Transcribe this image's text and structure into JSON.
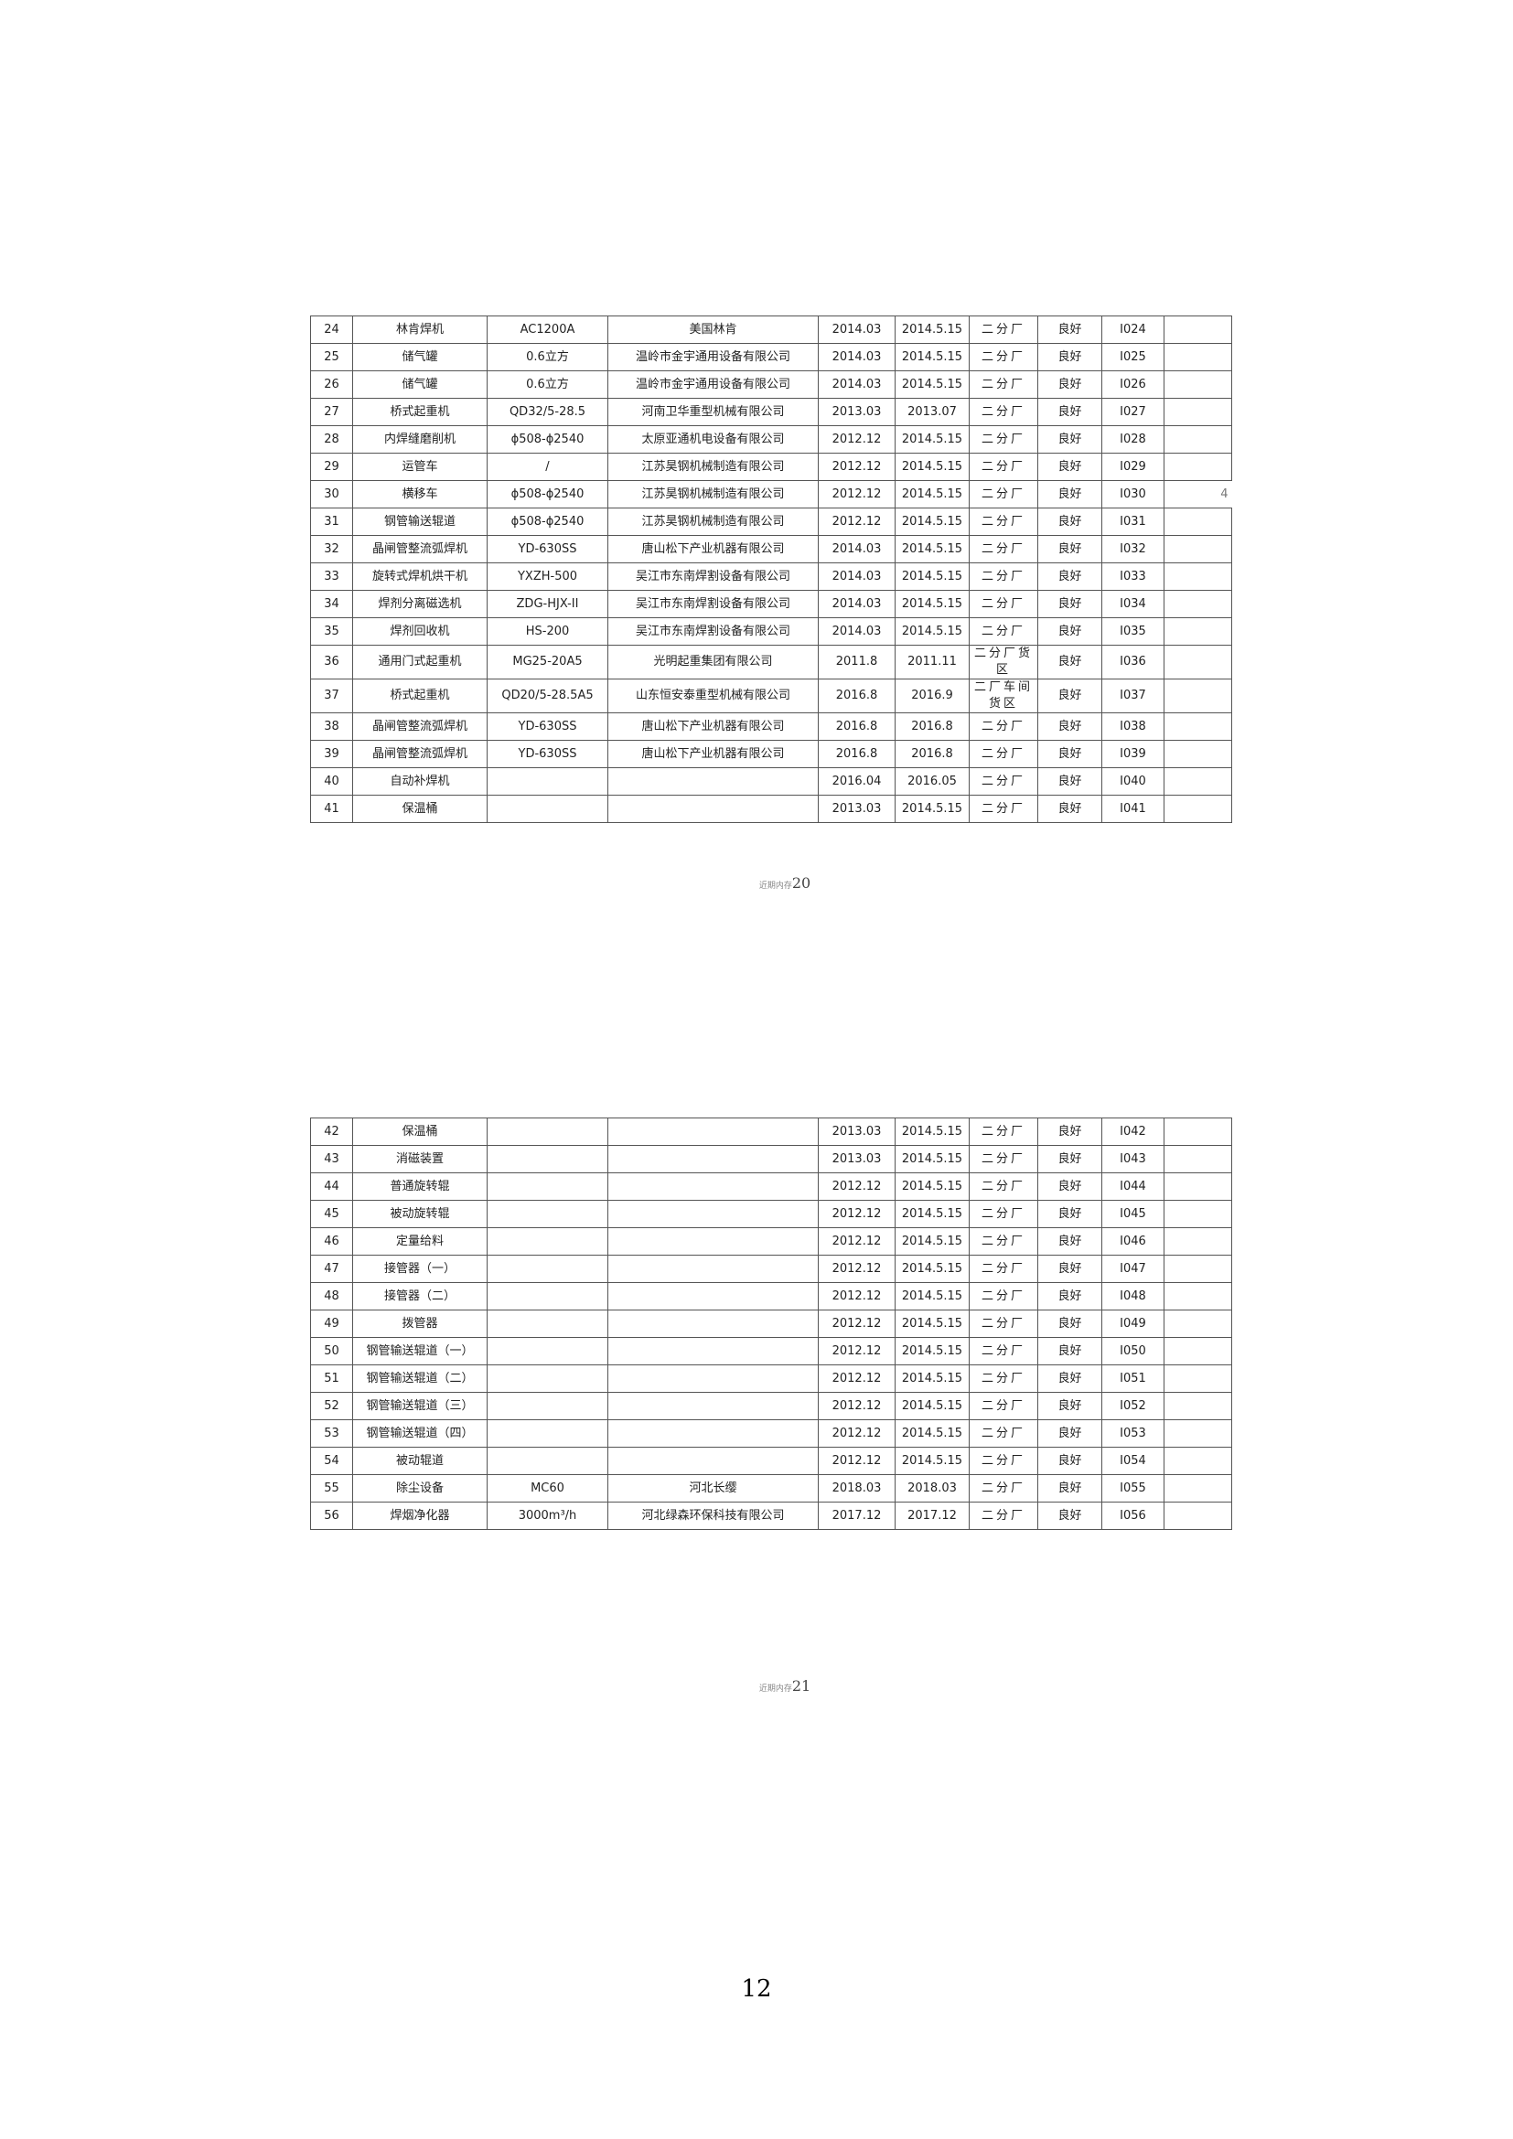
{
  "tables": [
    {
      "rows": [
        [
          "24",
          "林肯焊机",
          "AC1200A",
          "美国林肯",
          "2014.03",
          "2014.5.15",
          "二分厂",
          "良好",
          "I024",
          null
        ],
        [
          "25",
          "储气罐",
          "0.6立方",
          "温岭市金宇通用设备有限公司",
          "2014.03",
          "2014.5.15",
          "二分厂",
          "良好",
          "I025",
          null
        ],
        [
          "26",
          "储气罐",
          "0.6立方",
          "温岭市金宇通用设备有限公司",
          "2014.03",
          "2014.5.15",
          "二分厂",
          "良好",
          "I026",
          null
        ],
        [
          "27",
          "桥式起重机",
          "QD32/5-28.5",
          "河南卫华重型机械有限公司",
          "2013.03",
          "2013.07",
          "二分厂",
          "良好",
          "I027",
          null
        ],
        [
          "28",
          "内焊缝磨削机",
          "ϕ508-ϕ2540",
          "太原亚通机电设备有限公司",
          "2012.12",
          "2014.5.15",
          "二分厂",
          "良好",
          "I028",
          null
        ],
        [
          "29",
          "运管车",
          "/",
          "江苏昊钢机械制造有限公司",
          "2012.12",
          "2014.5.15",
          "二分厂",
          "良好",
          "I029",
          null
        ],
        [
          "30",
          "横移车",
          "ϕ508-ϕ2540",
          "江苏昊钢机械制造有限公司",
          "2012.12",
          "2014.5.15",
          "二分厂",
          "良好",
          "I030",
          "4"
        ],
        [
          "31",
          "钢管输送辊道",
          "ϕ508-ϕ2540",
          "江苏昊钢机械制造有限公司",
          "2012.12",
          "2014.5.15",
          "二分厂",
          "良好",
          "I031",
          null
        ],
        [
          "32",
          "晶闸管整流弧焊机",
          "YD-630SS",
          "唐山松下产业机器有限公司",
          "2014.03",
          "2014.5.15",
          "二分厂",
          "良好",
          "I032",
          null
        ],
        [
          "33",
          "旋转式焊机烘干机",
          "YXZH-500",
          "吴江市东南焊割设备有限公司",
          "2014.03",
          "2014.5.15",
          "二分厂",
          "良好",
          "I033",
          null
        ],
        [
          "34",
          "焊剂分离磁选机",
          "ZDG-HJX-II",
          "吴江市东南焊割设备有限公司",
          "2014.03",
          "2014.5.15",
          "二分厂",
          "良好",
          "I034",
          null
        ],
        [
          "35",
          "焊剂回收机",
          "HS-200",
          "吴江市东南焊割设备有限公司",
          "2014.03",
          "2014.5.15",
          "二分厂",
          "良好",
          "I035",
          null
        ],
        [
          "36",
          "通用门式起重机",
          "MG25-20A5",
          "光明起重集团有限公司",
          "2011.8",
          "2011.11",
          "二分厂货区",
          "良好",
          "I036",
          null
        ],
        [
          "37",
          "桥式起重机",
          "QD20/5-28.5A5",
          "山东恒安泰重型机械有限公司",
          "2016.8",
          "2016.9",
          "二厂车间货区",
          "良好",
          "I037",
          null
        ],
        [
          "38",
          "晶闸管整流弧焊机",
          "YD-630SS",
          "唐山松下产业机器有限公司",
          "2016.8",
          "2016.8",
          "二分厂",
          "良好",
          "I038",
          null
        ],
        [
          "39",
          "晶闸管整流弧焊机",
          "YD-630SS",
          "唐山松下产业机器有限公司",
          "2016.8",
          "2016.8",
          "二分厂",
          "良好",
          "I039",
          null
        ],
        [
          "40",
          "自动补焊机",
          null,
          null,
          "2016.04",
          "2016.05",
          "二分厂",
          "良好",
          "I040",
          null
        ],
        [
          "41",
          "保温桶",
          null,
          null,
          "2013.03",
          "2014.5.15",
          "二分厂",
          "良好",
          "I041",
          null
        ]
      ]
    },
    {
      "rows": [
        [
          "42",
          "保温桶",
          null,
          null,
          "2013.03",
          "2014.5.15",
          "二分厂",
          "良好",
          "I042",
          null
        ],
        [
          "43",
          "消磁装置",
          null,
          null,
          "2013.03",
          "2014.5.15",
          "二分厂",
          "良好",
          "I043",
          null
        ],
        [
          "44",
          "普通旋转辊",
          null,
          null,
          "2012.12",
          "2014.5.15",
          "二分厂",
          "良好",
          "I044",
          null
        ],
        [
          "45",
          "被动旋转辊",
          null,
          null,
          "2012.12",
          "2014.5.15",
          "二分厂",
          "良好",
          "I045",
          null
        ],
        [
          "46",
          "定量给料",
          null,
          null,
          "2012.12",
          "2014.5.15",
          "二分厂",
          "良好",
          "I046",
          null
        ],
        [
          "47",
          "接管器（一）",
          null,
          null,
          "2012.12",
          "2014.5.15",
          "二分厂",
          "良好",
          "I047",
          null
        ],
        [
          "48",
          "接管器（二）",
          null,
          null,
          "2012.12",
          "2014.5.15",
          "二分厂",
          "良好",
          "I048",
          null
        ],
        [
          "49",
          "拨管器",
          null,
          null,
          "2012.12",
          "2014.5.15",
          "二分厂",
          "良好",
          "I049",
          null
        ],
        [
          "50",
          "钢管输送辊道（一）",
          null,
          null,
          "2012.12",
          "2014.5.15",
          "二分厂",
          "良好",
          "I050",
          null
        ],
        [
          "51",
          "钢管输送辊道（二）",
          null,
          null,
          "2012.12",
          "2014.5.15",
          "二分厂",
          "良好",
          "I051",
          null
        ],
        [
          "52",
          "钢管输送辊道（三）",
          null,
          null,
          "2012.12",
          "2014.5.15",
          "二分厂",
          "良好",
          "I052",
          null
        ],
        [
          "53",
          "钢管输送辊道（四）",
          null,
          null,
          "2012.12",
          "2014.5.15",
          "二分厂",
          "良好",
          "I053",
          null
        ],
        [
          "54",
          "被动辊道",
          null,
          null,
          "2012.12",
          "2014.5.15",
          "二分厂",
          "良好",
          "I054",
          null
        ],
        [
          "55",
          "除尘设备",
          "MC60",
          "河北长缨",
          "2018.03",
          "2018.03",
          "二分厂",
          "良好",
          "I055",
          null
        ],
        [
          "56",
          "焊烟净化器",
          "3000m³/h",
          "河北绿森环保科技有限公司",
          "2017.12",
          "2017.12",
          "二分厂",
          "良好",
          "I056",
          null
        ]
      ]
    }
  ],
  "footers": [
    {
      "label": "近期内存",
      "number": "20"
    },
    {
      "label": "近期内存",
      "number": "21"
    }
  ],
  "page_number": "12"
}
